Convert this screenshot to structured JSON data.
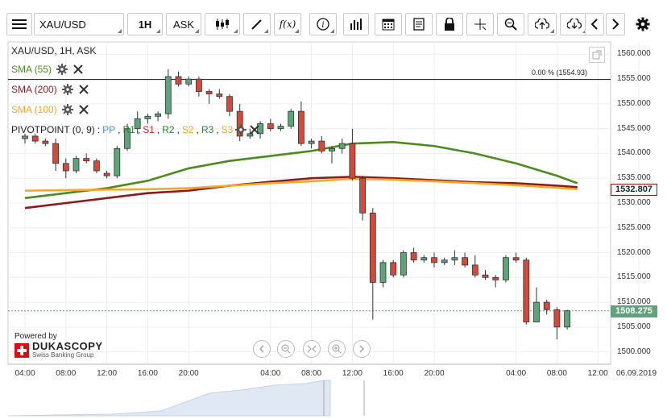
{
  "toolbar": {
    "symbol": "XAU/USD",
    "timeframe": "1H",
    "side": "ASK",
    "icons": [
      "menu-icon",
      "candles-icon",
      "draw-icon",
      "formula-icon",
      "info-icon",
      "volume-icon",
      "calendar-icon",
      "report-icon",
      "lock-icon",
      "crosshair-icon",
      "zoom-icon",
      "upload-icon",
      "download-icon",
      "prev-icon",
      "next-icon",
      "settings-icon"
    ],
    "fx_label": "f(x)"
  },
  "chart_header": "XAU/USD, 1H, ASK",
  "indicators": [
    {
      "label": "SMA (55)",
      "color": "#4a8c1e"
    },
    {
      "label": "SMA (200)",
      "color": "#8b1a1a"
    },
    {
      "label": "SMA (100)",
      "color": "#f5a623"
    }
  ],
  "pivot": {
    "prefix": "PIVOTPOINT (0, 9)",
    "parts": [
      {
        "t": "PP",
        "c": "#4a90e2"
      },
      {
        "t": "R1",
        "c": "#2e7d32"
      },
      {
        "t": "S1",
        "c": "#c62828"
      },
      {
        "t": "R2",
        "c": "#2e7d32"
      },
      {
        "t": "S2",
        "c": "#f5a623"
      },
      {
        "t": "R3",
        "c": "#2e7d32"
      },
      {
        "t": "S3",
        "c": "#f5a623"
      }
    ]
  },
  "reference_line_label": "0.00 % (1554.93)",
  "brand": {
    "powered_by": "Powered by",
    "name": "DUKASCOPY",
    "tagline": "Swiss Banking Group"
  },
  "price_labels": {
    "current": "1508.275",
    "sma": "1532.807"
  },
  "colors": {
    "up": "#5fa37a",
    "down": "#d24a3a",
    "sma55": "#4a8c1e",
    "sma200": "#8b1a1a",
    "sma100": "#f5a623"
  },
  "chart_data": {
    "type": "candlestick",
    "title": "XAU/USD, 1H, ASK",
    "y_ticks": [
      1500,
      1505,
      1510,
      1515,
      1520,
      1525,
      1530,
      1535,
      1540,
      1545,
      1550,
      1555,
      1560
    ],
    "y_tick_labels": [
      "1500.000",
      "1505.000",
      "1510.000",
      "1515.000",
      "1520.000",
      "1525.000",
      "1530.000",
      "1535.000",
      "1540.000",
      "1545.000",
      "1550.000",
      "1555.000",
      "1560.000"
    ],
    "ylim": [
      1497.5,
      1562.5
    ],
    "x_ticks": [
      {
        "label": "04:00",
        "i": 0
      },
      {
        "label": "08:00",
        "i": 4
      },
      {
        "label": "12:00",
        "i": 8
      },
      {
        "label": "16:00",
        "i": 12
      },
      {
        "label": "20:00",
        "i": 16
      },
      {
        "label": "04:00",
        "i": 24
      },
      {
        "label": "08:00",
        "i": 28
      },
      {
        "label": "12:00",
        "i": 32
      },
      {
        "label": "16:00",
        "i": 36
      },
      {
        "label": "20:00",
        "i": 40
      },
      {
        "label": "04:00",
        "i": 48
      },
      {
        "label": "08:00",
        "i": 52
      },
      {
        "label": "12:00",
        "i": 56
      },
      {
        "label": "06.09.2019",
        "i": 60
      }
    ],
    "reference_line": 1554.93,
    "current_price": 1508.275,
    "candles": [
      {
        "o": 1543.0,
        "h": 1544.0,
        "l": 1542.0,
        "c": 1543.5
      },
      {
        "o": 1543.5,
        "h": 1544.0,
        "l": 1542.0,
        "c": 1542.5
      },
      {
        "o": 1542.5,
        "h": 1543.0,
        "l": 1541.5,
        "c": 1542.0
      },
      {
        "o": 1542.0,
        "h": 1543.0,
        "l": 1536.5,
        "c": 1538.0
      },
      {
        "o": 1538.0,
        "h": 1539.0,
        "l": 1535.0,
        "c": 1536.5
      },
      {
        "o": 1536.5,
        "h": 1539.5,
        "l": 1536.0,
        "c": 1539.0
      },
      {
        "o": 1539.0,
        "h": 1540.0,
        "l": 1538.0,
        "c": 1538.5
      },
      {
        "o": 1538.5,
        "h": 1539.0,
        "l": 1536.0,
        "c": 1536.5
      },
      {
        "o": 1536.0,
        "h": 1536.5,
        "l": 1535.0,
        "c": 1535.5
      },
      {
        "o": 1535.5,
        "h": 1541.5,
        "l": 1535.0,
        "c": 1541.0
      },
      {
        "o": 1541.0,
        "h": 1546.0,
        "l": 1540.5,
        "c": 1545.0
      },
      {
        "o": 1545.0,
        "h": 1548.5,
        "l": 1544.0,
        "c": 1547.0
      },
      {
        "o": 1547.0,
        "h": 1548.0,
        "l": 1546.0,
        "c": 1547.5
      },
      {
        "o": 1547.5,
        "h": 1548.5,
        "l": 1546.5,
        "c": 1548.0
      },
      {
        "o": 1548.0,
        "h": 1557.0,
        "l": 1547.0,
        "c": 1555.5
      },
      {
        "o": 1555.5,
        "h": 1556.5,
        "l": 1553.5,
        "c": 1554.0
      },
      {
        "o": 1554.0,
        "h": 1555.5,
        "l": 1553.5,
        "c": 1555.0
      },
      {
        "o": 1555.0,
        "h": 1555.5,
        "l": 1551.5,
        "c": 1552.5
      },
      {
        "o": 1552.5,
        "h": 1553.0,
        "l": 1550.0,
        "c": 1552.0
      },
      {
        "o": 1552.0,
        "h": 1553.0,
        "l": 1551.0,
        "c": 1551.5
      },
      {
        "o": 1551.5,
        "h": 1552.0,
        "l": 1547.5,
        "c": 1548.5
      },
      {
        "o": 1548.5,
        "h": 1550.0,
        "l": 1542.5,
        "c": 1543.5
      },
      {
        "o": 1543.5,
        "h": 1545.0,
        "l": 1543.0,
        "c": 1544.0
      },
      {
        "o": 1544.0,
        "h": 1546.5,
        "l": 1543.0,
        "c": 1546.0
      },
      {
        "o": 1546.0,
        "h": 1547.0,
        "l": 1544.5,
        "c": 1545.0
      },
      {
        "o": 1545.0,
        "h": 1546.0,
        "l": 1544.5,
        "c": 1545.5
      },
      {
        "o": 1545.5,
        "h": 1549.0,
        "l": 1545.0,
        "c": 1548.5
      },
      {
        "o": 1548.5,
        "h": 1550.5,
        "l": 1541.5,
        "c": 1542.0
      },
      {
        "o": 1542.0,
        "h": 1543.0,
        "l": 1541.0,
        "c": 1542.5
      },
      {
        "o": 1542.5,
        "h": 1543.5,
        "l": 1540.0,
        "c": 1540.5
      },
      {
        "o": 1540.5,
        "h": 1541.5,
        "l": 1538.0,
        "c": 1541.0
      },
      {
        "o": 1541.0,
        "h": 1543.0,
        "l": 1540.0,
        "c": 1542.0
      },
      {
        "o": 1542.0,
        "h": 1545.0,
        "l": 1534.5,
        "c": 1535.0
      },
      {
        "o": 1535.0,
        "h": 1535.5,
        "l": 1526.5,
        "c": 1528.0
      },
      {
        "o": 1528.0,
        "h": 1529.0,
        "l": 1506.5,
        "c": 1514.0
      },
      {
        "o": 1514.0,
        "h": 1518.5,
        "l": 1513.0,
        "c": 1518.0
      },
      {
        "o": 1518.0,
        "h": 1518.5,
        "l": 1515.0,
        "c": 1515.5
      },
      {
        "o": 1515.5,
        "h": 1520.5,
        "l": 1515.0,
        "c": 1520.0
      },
      {
        "o": 1520.0,
        "h": 1521.0,
        "l": 1518.0,
        "c": 1518.5
      },
      {
        "o": 1518.5,
        "h": 1519.5,
        "l": 1518.0,
        "c": 1519.0
      },
      {
        "o": 1519.0,
        "h": 1520.0,
        "l": 1517.0,
        "c": 1518.0
      },
      {
        "o": 1518.0,
        "h": 1519.0,
        "l": 1517.5,
        "c": 1518.5
      },
      {
        "o": 1518.5,
        "h": 1520.5,
        "l": 1517.5,
        "c": 1519.0
      },
      {
        "o": 1519.0,
        "h": 1520.0,
        "l": 1517.0,
        "c": 1517.5
      },
      {
        "o": 1517.5,
        "h": 1519.5,
        "l": 1515.0,
        "c": 1515.5
      },
      {
        "o": 1515.5,
        "h": 1516.5,
        "l": 1514.5,
        "c": 1515.0
      },
      {
        "o": 1515.0,
        "h": 1515.5,
        "l": 1513.0,
        "c": 1514.5
      },
      {
        "o": 1514.5,
        "h": 1519.5,
        "l": 1514.0,
        "c": 1519.0
      },
      {
        "o": 1519.0,
        "h": 1520.0,
        "l": 1518.0,
        "c": 1518.5
      },
      {
        "o": 1518.5,
        "h": 1519.0,
        "l": 1505.5,
        "c": 1506.0
      },
      {
        "o": 1506.0,
        "h": 1513.0,
        "l": 1506.0,
        "c": 1510.0
      },
      {
        "o": 1510.0,
        "h": 1510.5,
        "l": 1507.5,
        "c": 1508.5
      },
      {
        "o": 1508.5,
        "h": 1509.0,
        "l": 1502.5,
        "c": 1505.0
      },
      {
        "o": 1505.0,
        "h": 1508.5,
        "l": 1504.5,
        "c": 1508.275
      }
    ],
    "series": [
      {
        "name": "SMA (55)",
        "color": "#4a8c1e",
        "values": [
          [
            0,
            1531.0
          ],
          [
            4,
            1532.0
          ],
          [
            8,
            1533.0
          ],
          [
            12,
            1534.5
          ],
          [
            16,
            1537.0
          ],
          [
            20,
            1538.5
          ],
          [
            24,
            1539.5
          ],
          [
            28,
            1540.5
          ],
          [
            32,
            1542.0
          ],
          [
            36,
            1542.3
          ],
          [
            40,
            1541.5
          ],
          [
            44,
            1540.0
          ],
          [
            48,
            1538.0
          ],
          [
            52,
            1535.5
          ],
          [
            54,
            1534.0
          ]
        ]
      },
      {
        "name": "SMA (200)",
        "color": "#8b1a1a",
        "values": [
          [
            0,
            1529.0
          ],
          [
            4,
            1530.0
          ],
          [
            8,
            1531.0
          ],
          [
            12,
            1532.0
          ],
          [
            16,
            1532.5
          ],
          [
            20,
            1533.5
          ],
          [
            24,
            1534.3
          ],
          [
            28,
            1535.0
          ],
          [
            32,
            1535.3
          ],
          [
            36,
            1535.0
          ],
          [
            40,
            1534.6
          ],
          [
            44,
            1534.2
          ],
          [
            48,
            1534.0
          ],
          [
            52,
            1533.5
          ],
          [
            54,
            1533.2
          ]
        ]
      },
      {
        "name": "SMA (100)",
        "color": "#f5a623",
        "values": [
          [
            0,
            1532.5
          ],
          [
            4,
            1532.6
          ],
          [
            8,
            1532.7
          ],
          [
            12,
            1532.8
          ],
          [
            16,
            1533.0
          ],
          [
            20,
            1533.5
          ],
          [
            24,
            1534.0
          ],
          [
            28,
            1534.4
          ],
          [
            32,
            1534.9
          ],
          [
            36,
            1534.7
          ],
          [
            40,
            1534.4
          ],
          [
            44,
            1534.0
          ],
          [
            48,
            1533.6
          ],
          [
            52,
            1533.1
          ],
          [
            54,
            1532.807
          ]
        ]
      }
    ]
  }
}
